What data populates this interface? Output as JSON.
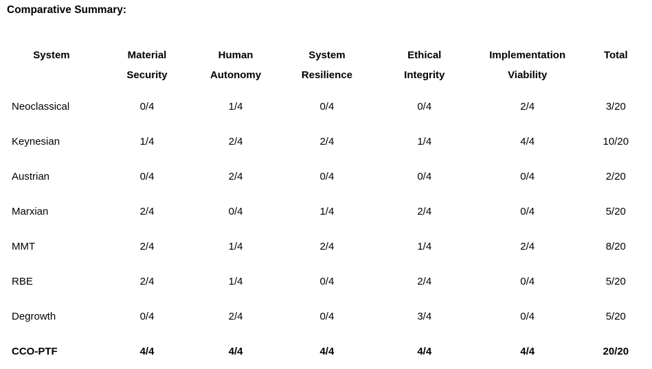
{
  "title": "Comparative Summary:",
  "colors": {
    "background": "#ffffff",
    "text": "#000000"
  },
  "table": {
    "column_headers": [
      {
        "label": "System",
        "lines": [
          "System"
        ]
      },
      {
        "label": "Material Security",
        "lines": [
          "Material",
          "Security"
        ]
      },
      {
        "label": "Human Autonomy",
        "lines": [
          "Human",
          "Autonomy"
        ]
      },
      {
        "label": "System Resilience",
        "lines": [
          "System",
          "Resilience"
        ]
      },
      {
        "label": "Ethical Integrity",
        "lines": [
          "Ethical",
          "Integrity"
        ]
      },
      {
        "label": "Implementation Viability",
        "lines": [
          "Implementation",
          "Viability"
        ]
      },
      {
        "label": "Total",
        "lines": [
          "Total"
        ]
      }
    ],
    "value_keys": [
      "material_security",
      "human_autonomy",
      "system_resilience",
      "ethical_integrity",
      "implementation_viability",
      "total"
    ],
    "rows": [
      {
        "system": "Neoclassical",
        "material_security": "0/4",
        "human_autonomy": "1/4",
        "system_resilience": "0/4",
        "ethical_integrity": "0/4",
        "implementation_viability": "2/4",
        "total": "3/20",
        "bold": false
      },
      {
        "system": "Keynesian",
        "material_security": "1/4",
        "human_autonomy": "2/4",
        "system_resilience": "2/4",
        "ethical_integrity": "1/4",
        "implementation_viability": "4/4",
        "total": "10/20",
        "bold": false
      },
      {
        "system": "Austrian",
        "material_security": "0/4",
        "human_autonomy": "2/4",
        "system_resilience": "0/4",
        "ethical_integrity": "0/4",
        "implementation_viability": "0/4",
        "total": "2/20",
        "bold": false
      },
      {
        "system": "Marxian",
        "material_security": "2/4",
        "human_autonomy": "0/4",
        "system_resilience": "1/4",
        "ethical_integrity": "2/4",
        "implementation_viability": "0/4",
        "total": "5/20",
        "bold": false
      },
      {
        "system": "MMT",
        "material_security": "2/4",
        "human_autonomy": "1/4",
        "system_resilience": "2/4",
        "ethical_integrity": "1/4",
        "implementation_viability": "2/4",
        "total": "8/20",
        "bold": false
      },
      {
        "system": "RBE",
        "material_security": "2/4",
        "human_autonomy": "1/4",
        "system_resilience": "0/4",
        "ethical_integrity": "2/4",
        "implementation_viability": "0/4",
        "total": "5/20",
        "bold": false
      },
      {
        "system": "Degrowth",
        "material_security": "0/4",
        "human_autonomy": "2/4",
        "system_resilience": "0/4",
        "ethical_integrity": "3/4",
        "implementation_viability": "0/4",
        "total": "5/20",
        "bold": false
      },
      {
        "system": "CCO-PTF",
        "material_security": "4/4",
        "human_autonomy": "4/4",
        "system_resilience": "4/4",
        "ethical_integrity": "4/4",
        "implementation_viability": "4/4",
        "total": "20/20",
        "bold": true
      }
    ]
  }
}
